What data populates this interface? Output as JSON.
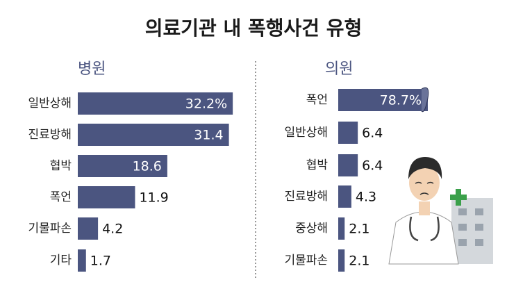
{
  "title": "의료기관 내 폭행사건 유형",
  "chart_data": [
    {
      "type": "bar",
      "orientation": "horizontal",
      "subtitle": "병원",
      "color": "#4b5580",
      "categories": [
        "일반상해",
        "진료방해",
        "협박",
        "폭언",
        "기물파손",
        "기타"
      ],
      "values": [
        32.2,
        31.4,
        18.6,
        11.9,
        4.2,
        1.7
      ],
      "value_labels": [
        "32.2%",
        "31.4",
        "18.6",
        "11.9",
        "4.2",
        "1.7"
      ]
    },
    {
      "type": "bar",
      "orientation": "horizontal",
      "subtitle": "의원",
      "color": "#4b5580",
      "broken_bar": true,
      "categories": [
        "폭언",
        "일반상해",
        "협박",
        "진료방해",
        "중상해",
        "기물파손"
      ],
      "values": [
        78.7,
        6.4,
        6.4,
        4.3,
        2.1,
        2.1
      ],
      "value_labels": [
        "78.7%",
        "6.4",
        "6.4",
        "4.3",
        "2.1",
        "2.1"
      ]
    }
  ]
}
